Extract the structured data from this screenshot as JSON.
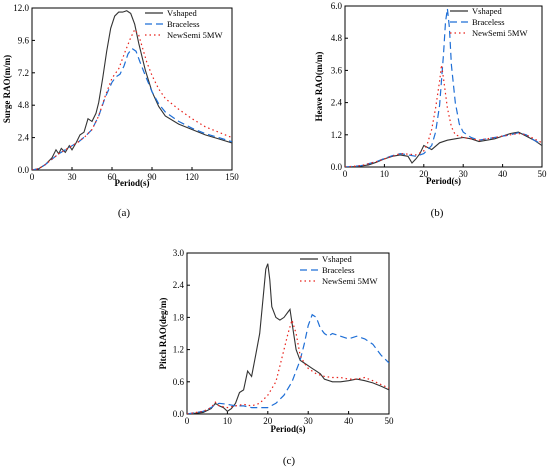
{
  "colors": {
    "series": [
      "#333333",
      "#1f6fd6",
      "#e8211a"
    ],
    "dash": [
      "",
      "7,4",
      "1.5,3"
    ],
    "axis": "#000000"
  },
  "chart_data": [
    {
      "type": "line",
      "panel_label": "(a)",
      "xlabel": "Period(s)",
      "ylabel": "Surge RAO(m/m)",
      "xlim": [
        0,
        150
      ],
      "ylim": [
        0,
        12
      ],
      "xticks": [
        0,
        30,
        60,
        90,
        120,
        150
      ],
      "yticks": [
        0.0,
        2.4,
        4.8,
        7.2,
        9.6,
        12.0
      ],
      "ytick_labels": [
        "0.0",
        "2.4",
        "4.8",
        "7.2",
        "9.6",
        "12.0"
      ],
      "legend_position": "top-right",
      "series": [
        {
          "name": "Vshaped",
          "x": [
            0,
            5,
            10,
            15,
            18,
            20,
            22,
            25,
            28,
            30,
            33,
            36,
            39,
            42,
            45,
            48,
            50,
            53,
            56,
            59,
            62,
            65,
            68,
            71,
            74,
            77,
            80,
            85,
            90,
            95,
            100,
            110,
            120,
            130,
            140,
            150
          ],
          "y": [
            0,
            0.1,
            0.4,
            0.9,
            1.5,
            1.2,
            1.6,
            1.3,
            1.8,
            1.5,
            2.0,
            2.6,
            2.8,
            3.8,
            3.6,
            4.2,
            5.0,
            6.8,
            8.8,
            10.5,
            11.4,
            11.7,
            11.7,
            11.8,
            11.6,
            10.8,
            9.4,
            7.4,
            5.8,
            4.7,
            4.0,
            3.4,
            3.0,
            2.6,
            2.3,
            2.0
          ]
        },
        {
          "name": "Braceless",
          "x": [
            0,
            5,
            10,
            15,
            20,
            25,
            30,
            35,
            40,
            45,
            50,
            55,
            60,
            63,
            66,
            69,
            72,
            75,
            78,
            81,
            85,
            90,
            95,
            100,
            110,
            120,
            130,
            140,
            150
          ],
          "y": [
            0,
            0.1,
            0.4,
            0.8,
            1.2,
            1.5,
            1.8,
            2.1,
            2.5,
            3.0,
            4.0,
            5.4,
            6.5,
            6.9,
            7.1,
            7.7,
            8.6,
            9.0,
            8.8,
            8.0,
            7.0,
            5.8,
            4.9,
            4.3,
            3.6,
            3.1,
            2.7,
            2.4,
            2.1
          ]
        },
        {
          "name": "NewSemi 5MW",
          "x": [
            0,
            5,
            10,
            15,
            20,
            25,
            30,
            35,
            40,
            45,
            50,
            55,
            60,
            65,
            70,
            74,
            77,
            80,
            83,
            86,
            90,
            95,
            100,
            110,
            120,
            130,
            140,
            150
          ],
          "y": [
            0,
            0.1,
            0.4,
            0.8,
            1.2,
            1.5,
            1.8,
            2.1,
            2.5,
            3.0,
            4.0,
            5.5,
            6.8,
            7.5,
            8.8,
            9.8,
            10.4,
            10.0,
            9.0,
            8.0,
            7.0,
            6.0,
            5.3,
            4.5,
            3.8,
            3.2,
            2.8,
            2.4
          ]
        }
      ]
    },
    {
      "type": "line",
      "panel_label": "(b)",
      "xlabel": "Period(s)",
      "ylabel": "Heave RAO(m/m)",
      "xlim": [
        0,
        50
      ],
      "ylim": [
        0,
        6
      ],
      "xticks": [
        0,
        10,
        20,
        30,
        40,
        50
      ],
      "yticks": [
        0.0,
        1.2,
        2.4,
        3.6,
        4.8,
        6.0
      ],
      "ytick_labels": [
        "0.0",
        "1.2",
        "2.4",
        "3.6",
        "4.8",
        "6.0"
      ],
      "legend_position": "top-right",
      "series": [
        {
          "name": "Vshaped",
          "x": [
            0,
            3,
            6,
            8,
            10,
            12,
            14,
            16,
            17,
            18,
            19,
            20,
            22,
            24,
            26,
            28,
            30,
            32,
            34,
            36,
            38,
            40,
            42,
            44,
            46,
            48,
            50
          ],
          "y": [
            0,
            0.02,
            0.08,
            0.18,
            0.3,
            0.4,
            0.45,
            0.4,
            0.15,
            0.3,
            0.5,
            0.8,
            0.65,
            0.9,
            1.0,
            1.05,
            1.1,
            1.05,
            0.95,
            1.0,
            1.05,
            1.15,
            1.25,
            1.3,
            1.15,
            1.0,
            0.8
          ]
        },
        {
          "name": "Braceless",
          "x": [
            0,
            4,
            8,
            10,
            12,
            14,
            16,
            18,
            20,
            22,
            23,
            24,
            25,
            25.5,
            26,
            26.5,
            27,
            28,
            29,
            30,
            32,
            34,
            36,
            38,
            40,
            42,
            44,
            46,
            48,
            50
          ],
          "y": [
            0,
            0.05,
            0.2,
            0.32,
            0.42,
            0.5,
            0.45,
            0.4,
            0.5,
            0.8,
            1.3,
            2.3,
            4.2,
            5.4,
            5.9,
            5.2,
            3.8,
            2.4,
            1.6,
            1.3,
            1.1,
            1.0,
            1.05,
            1.1,
            1.15,
            1.2,
            1.28,
            1.2,
            1.0,
            0.85
          ]
        },
        {
          "name": "NewSemi 5MW",
          "x": [
            0,
            4,
            8,
            10,
            12,
            14,
            16,
            18,
            20,
            21,
            22,
            23,
            24,
            24.5,
            25,
            26,
            27,
            28,
            30,
            32,
            34,
            36,
            38,
            40,
            42,
            44,
            46,
            48,
            50
          ],
          "y": [
            0,
            0.05,
            0.2,
            0.3,
            0.4,
            0.5,
            0.48,
            0.45,
            0.6,
            0.9,
            1.4,
            2.2,
            3.2,
            3.8,
            3.3,
            2.2,
            1.5,
            1.2,
            1.1,
            1.05,
            1.0,
            1.05,
            1.1,
            1.15,
            1.2,
            1.25,
            1.2,
            1.05,
            0.9
          ]
        }
      ]
    },
    {
      "type": "line",
      "panel_label": "(c)",
      "xlabel": "Period(s)",
      "ylabel": "Pitch RAO(deg/m)",
      "xlim": [
        0,
        50
      ],
      "ylim": [
        0,
        3
      ],
      "xticks": [
        0,
        10,
        20,
        30,
        40,
        50
      ],
      "yticks": [
        0.0,
        0.6,
        1.2,
        1.8,
        2.4,
        3.0
      ],
      "ytick_labels": [
        "0.0",
        "0.6",
        "1.2",
        "1.8",
        "2.4",
        "3.0"
      ],
      "legend_position": "top-right",
      "series": [
        {
          "name": "Vshaped",
          "x": [
            0,
            4,
            6,
            7,
            8,
            9,
            10,
            11,
            12,
            13,
            14,
            15,
            16,
            17,
            18,
            19,
            19.5,
            20,
            20.5,
            21,
            22,
            23,
            24,
            25,
            25.5,
            26,
            27,
            28,
            29,
            30,
            31,
            32,
            33,
            34,
            36,
            38,
            40,
            42,
            44,
            46,
            48,
            50
          ],
          "y": [
            0,
            0.03,
            0.1,
            0.2,
            0.15,
            0.12,
            0.05,
            0.1,
            0.2,
            0.4,
            0.45,
            0.8,
            0.7,
            1.1,
            1.5,
            2.3,
            2.7,
            2.8,
            2.5,
            2.0,
            1.8,
            1.75,
            1.8,
            1.9,
            1.95,
            1.7,
            1.2,
            1.0,
            0.95,
            0.9,
            0.85,
            0.8,
            0.75,
            0.65,
            0.6,
            0.6,
            0.62,
            0.65,
            0.62,
            0.58,
            0.52,
            0.45
          ]
        },
        {
          "name": "Braceless",
          "x": [
            0,
            4,
            6,
            7,
            8,
            10,
            12,
            14,
            16,
            18,
            20,
            22,
            24,
            26,
            28,
            29,
            30,
            31,
            32,
            33,
            34,
            35,
            36,
            38,
            40,
            42,
            44,
            46,
            48,
            50
          ],
          "y": [
            0,
            0.05,
            0.12,
            0.18,
            0.2,
            0.18,
            0.15,
            0.15,
            0.12,
            0.12,
            0.12,
            0.2,
            0.35,
            0.6,
            1.0,
            1.3,
            1.65,
            1.85,
            1.8,
            1.6,
            1.5,
            1.45,
            1.5,
            1.45,
            1.4,
            1.45,
            1.4,
            1.3,
            1.1,
            0.95
          ]
        },
        {
          "name": "NewSemi 5MW",
          "x": [
            0,
            4,
            6,
            7,
            8,
            10,
            12,
            14,
            16,
            18,
            20,
            22,
            24,
            25,
            26,
            27,
            28,
            29,
            30,
            31,
            32,
            34,
            36,
            38,
            40,
            42,
            44,
            46,
            48,
            50
          ],
          "y": [
            0,
            0.05,
            0.12,
            0.22,
            0.15,
            0.12,
            0.15,
            0.18,
            0.15,
            0.2,
            0.35,
            0.6,
            1.2,
            1.5,
            1.75,
            1.5,
            1.1,
            0.95,
            0.85,
            0.8,
            0.75,
            0.7,
            0.68,
            0.68,
            0.65,
            0.65,
            0.68,
            0.62,
            0.55,
            0.48
          ]
        }
      ]
    }
  ]
}
